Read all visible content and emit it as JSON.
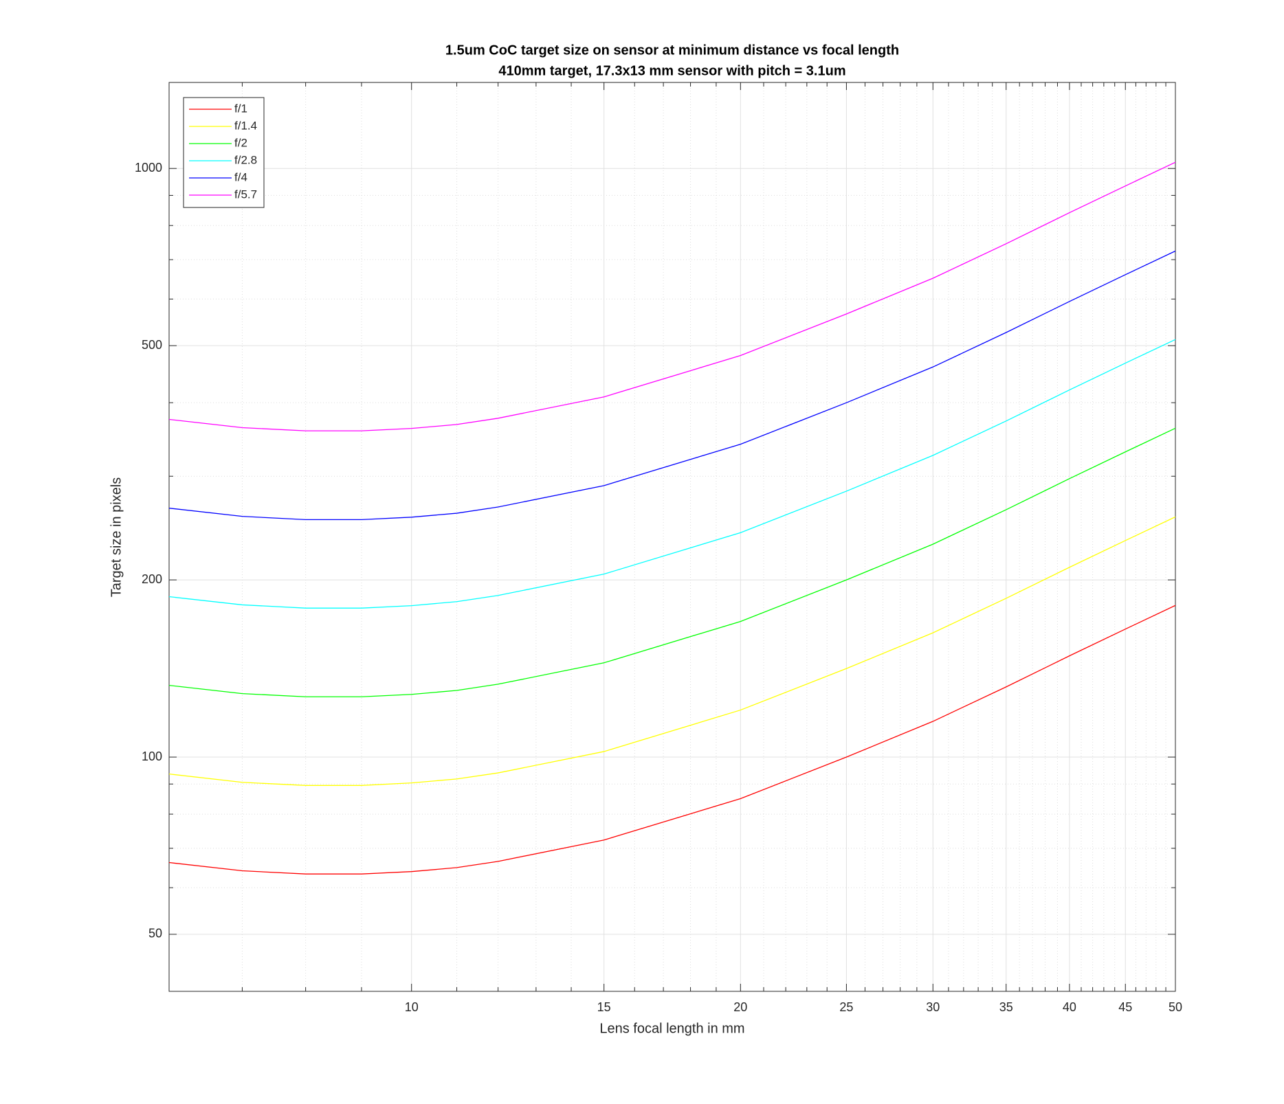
{
  "chart_data": {
    "type": "line",
    "title": "1.5um CoC target size on sensor at minimum distance vs focal length",
    "subtitle": "410mm target, 17.3x13 mm sensor with pitch = 3.1um",
    "x_label": "Lens focal length in mm",
    "y_label": "Target size in pixels",
    "x_scale": "log",
    "y_scale": "log",
    "grid": true,
    "minor_grid": true,
    "legend_location": "northwest",
    "xlim": [
      6,
      50
    ],
    "ylim": [
      40,
      1400
    ],
    "xticks": [
      10,
      15,
      20,
      25,
      30,
      35,
      40,
      45,
      50
    ],
    "yticks": [
      50,
      100,
      200,
      500,
      1000
    ],
    "x_minor_ticks": [
      7,
      8,
      9,
      11,
      12,
      13,
      14,
      16,
      17,
      18,
      19,
      21,
      22,
      23,
      24,
      26,
      27,
      28,
      29,
      31,
      32,
      33,
      34,
      36,
      37,
      38,
      39,
      41,
      42,
      43,
      44,
      46,
      47,
      48,
      49
    ],
    "y_minor_ticks": [
      60,
      70,
      80,
      90,
      300,
      400,
      600,
      700,
      800,
      900
    ],
    "x": [
      6,
      7,
      8,
      9,
      10,
      11,
      12,
      15,
      20,
      25,
      30,
      35,
      40,
      45,
      50
    ],
    "series": [
      {
        "name": "f/1",
        "color": "#ff0000",
        "values": [
          66.2,
          64.1,
          63.3,
          63.3,
          63.9,
          64.9,
          66.5,
          72.3,
          85,
          100,
          115,
          131.6,
          148.6,
          165,
          181
        ]
      },
      {
        "name": "f/1.4",
        "color": "#ffff00",
        "values": [
          93.6,
          90.6,
          89.5,
          89.5,
          90.4,
          91.8,
          94.0,
          102.2,
          120.2,
          141.4,
          162.6,
          186.1,
          210.1,
          233.3,
          255.9
        ]
      },
      {
        "name": "f/2",
        "color": "#00ff00",
        "values": [
          132.4,
          128.2,
          126.6,
          126.6,
          127.8,
          129.8,
          133,
          144.6,
          170,
          200,
          230,
          263.2,
          297.2,
          330,
          362
        ]
      },
      {
        "name": "f/2.8",
        "color": "#00ffff",
        "values": [
          187.3,
          181.4,
          179.1,
          179.1,
          180.8,
          183.7,
          188.2,
          204.6,
          240.6,
          283,
          325.5,
          372.4,
          420.5,
          467,
          512.2
        ]
      },
      {
        "name": "f/4",
        "color": "#0000ff",
        "values": [
          264.8,
          256.4,
          253.2,
          253.2,
          255.6,
          259.6,
          266,
          289.2,
          340,
          400,
          460,
          526.4,
          594.4,
          660,
          724
        ]
      },
      {
        "name": "f/5.7",
        "color": "#ff00ff",
        "values": [
          374.7,
          362.8,
          358.3,
          358.3,
          361.7,
          367.3,
          376.4,
          409.2,
          481.1,
          566,
          650.9,
          744.9,
          841.1,
          933.9,
          1024.5
        ]
      }
    ]
  }
}
